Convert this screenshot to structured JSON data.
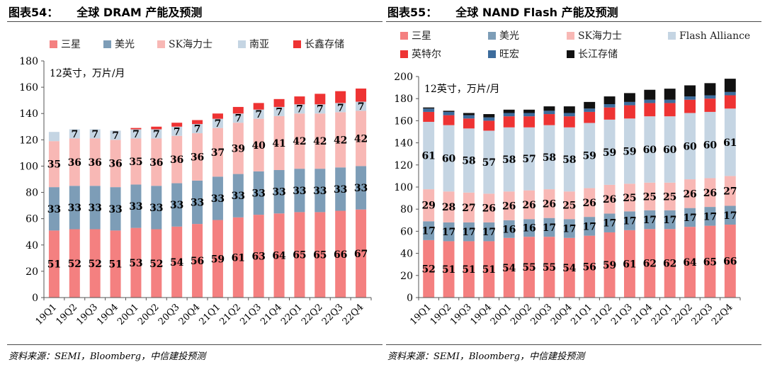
{
  "left": {
    "figure_label": "图表54：",
    "title": "全球 DRAM 产能及预测",
    "source": "资料来源：SEMI，Bloomberg，中信建投预测"
  },
  "right": {
    "figure_label": "图表55：",
    "title": "全球 NAND Flash 产能及预测",
    "source": "资料来源：SEMI，Bloomberg，中信建投预测"
  },
  "chart_data": [
    {
      "type": "bar",
      "stacked": true,
      "title": "全球 DRAM 产能及预测",
      "unit_note": "12英寸，万片/月",
      "categories": [
        "19Q1",
        "19Q2",
        "19Q3",
        "19Q4",
        "20Q1",
        "20Q2",
        "20Q3",
        "20Q4",
        "21Q1",
        "21Q2",
        "21Q3",
        "21Q4",
        "22Q1",
        "22Q2",
        "22Q3",
        "22Q4"
      ],
      "ylim": [
        0,
        180
      ],
      "yticks": [
        0,
        20,
        40,
        60,
        80,
        100,
        120,
        140,
        160,
        180
      ],
      "legend_position": "top",
      "label_color": "#000000",
      "series": [
        {
          "name": "三星",
          "color": "#f48080",
          "values": [
            51,
            52,
            52,
            51,
            53,
            52,
            54,
            56,
            59,
            61,
            63,
            64,
            65,
            65,
            66,
            67
          ],
          "labels": [
            "51",
            "52",
            "52",
            "51",
            "53",
            "52",
            "54",
            "56",
            "59",
            "61",
            "63",
            "64",
            "65",
            "65",
            "66",
            "67"
          ]
        },
        {
          "name": "美光",
          "color": "#7d9db7",
          "values": [
            33,
            33,
            33,
            33,
            33,
            33,
            33,
            33,
            33,
            33,
            33,
            33,
            33,
            33,
            33,
            33
          ],
          "labels": [
            "33",
            "33",
            "33",
            "33",
            "33",
            "33",
            "33",
            "33",
            "33",
            "33",
            "33",
            "33",
            "33",
            "33",
            "33",
            "33"
          ]
        },
        {
          "name": "SK海力士",
          "color": "#f8b8b5",
          "values": [
            35,
            36,
            36,
            36,
            35,
            36,
            36,
            36,
            37,
            39,
            40,
            41,
            42,
            42,
            42,
            42
          ],
          "labels": [
            "35",
            "36",
            "36",
            "36",
            "35",
            "36",
            "36",
            "36",
            "37",
            "39",
            "40",
            "41",
            "42",
            "42",
            "42",
            "42"
          ]
        },
        {
          "name": "南亚",
          "color": "#c5d5e3",
          "values": [
            7,
            7,
            7,
            7,
            7,
            7,
            7,
            7,
            7,
            7,
            7,
            7,
            7,
            7,
            7,
            7
          ],
          "labels": [
            "",
            "7",
            "7",
            "7",
            "7",
            "7",
            "7",
            "7",
            "7",
            "7",
            "7",
            "7",
            "7",
            "7",
            "7",
            "7"
          ]
        },
        {
          "name": "长鑫存储",
          "color": "#ee3333",
          "values": [
            0,
            0,
            0,
            0,
            1,
            2,
            3,
            3,
            4,
            5,
            5,
            6,
            6,
            8,
            9,
            10
          ],
          "labels": []
        }
      ]
    },
    {
      "type": "bar",
      "stacked": true,
      "title": "全球 NAND Flash 产能及预测",
      "unit_note": "12英寸，万片/月",
      "categories": [
        "19Q1",
        "19Q2",
        "19Q3",
        "19Q4",
        "20Q1",
        "20Q2",
        "20Q3",
        "20Q4",
        "21Q1",
        "21Q2",
        "21Q3",
        "21Q4",
        "22Q1",
        "22Q2",
        "22Q3",
        "22Q4"
      ],
      "ylim": [
        0,
        200
      ],
      "yticks": [
        0,
        20,
        40,
        60,
        80,
        100,
        120,
        140,
        160,
        180,
        200
      ],
      "legend_position": "top",
      "label_color": "#000000",
      "series": [
        {
          "name": "三星",
          "color": "#f48080",
          "values": [
            52,
            51,
            51,
            51,
            54,
            55,
            55,
            54,
            56,
            59,
            61,
            62,
            62,
            64,
            65,
            66
          ],
          "labels": [
            "52",
            "51",
            "51",
            "51",
            "54",
            "55",
            "55",
            "54",
            "56",
            "59",
            "61",
            "62",
            "62",
            "64",
            "65",
            "66"
          ]
        },
        {
          "name": "美光",
          "color": "#7d9db7",
          "values": [
            17,
            17,
            17,
            17,
            16,
            16,
            17,
            17,
            17,
            17,
            17,
            17,
            17,
            17,
            17,
            17
          ],
          "labels": [
            "17",
            "17",
            "17",
            "17",
            "16",
            "16",
            "17",
            "17",
            "17",
            "17",
            "17",
            "17",
            "17",
            "17",
            "17",
            "17"
          ]
        },
        {
          "name": "SK海力士",
          "color": "#f8b8b5",
          "values": [
            29,
            28,
            27,
            26,
            26,
            26,
            26,
            25,
            26,
            26,
            25,
            25,
            25,
            26,
            26,
            27
          ],
          "labels": [
            "29",
            "28",
            "27",
            "26",
            "26",
            "26",
            "26",
            "25",
            "26",
            "26",
            "25",
            "25",
            "25",
            "26",
            "26",
            "27"
          ]
        },
        {
          "name": "Flash Alliance",
          "color": "#c5d5e3",
          "values": [
            61,
            60,
            58,
            57,
            58,
            57,
            58,
            58,
            59,
            59,
            59,
            60,
            60,
            60,
            60,
            61
          ],
          "labels": [
            "61",
            "60",
            "58",
            "57",
            "58",
            "57",
            "58",
            "58",
            "59",
            "59",
            "59",
            "60",
            "60",
            "60",
            "60",
            "61"
          ]
        },
        {
          "name": "英特尔",
          "color": "#ee3333",
          "values": [
            9,
            9,
            9,
            9,
            10,
            10,
            10,
            10,
            10,
            11,
            12,
            12,
            12,
            12,
            12,
            12
          ],
          "labels": []
        },
        {
          "name": "旺宏",
          "color": "#3d6c9c",
          "values": [
            3,
            3,
            3,
            3,
            3,
            3,
            3,
            3,
            3,
            3,
            3,
            3,
            3,
            3,
            3,
            3
          ],
          "labels": []
        },
        {
          "name": "长江存储",
          "color": "#111111",
          "values": [
            1,
            1,
            2,
            3,
            3,
            3,
            4,
            6,
            6,
            7,
            8,
            9,
            10,
            10,
            11,
            12
          ],
          "labels": []
        }
      ]
    }
  ]
}
